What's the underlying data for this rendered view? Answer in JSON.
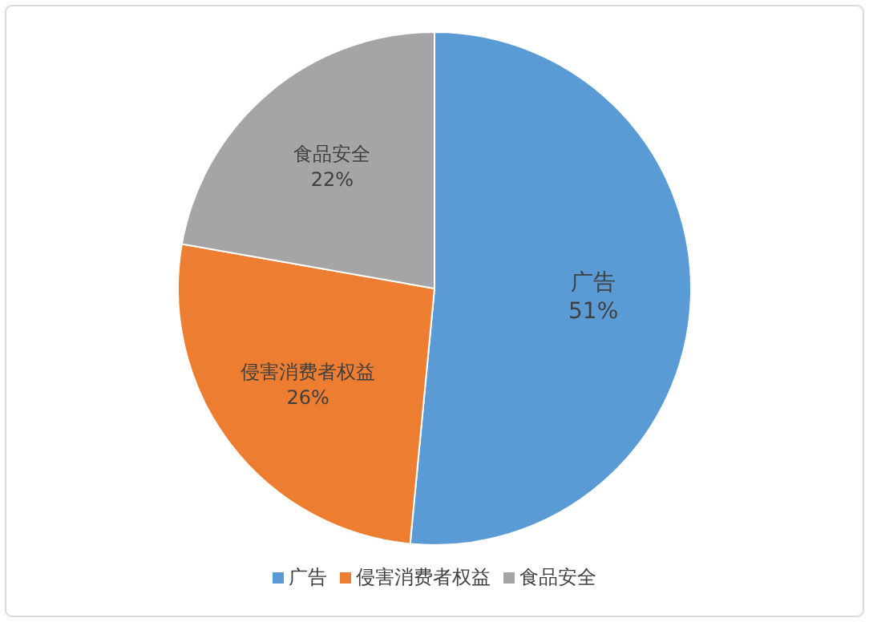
{
  "chart_data": {
    "type": "pie",
    "categories": [
      "广告",
      "侵害消费者权益",
      "食品安全"
    ],
    "values": [
      51,
      26,
      22
    ],
    "colors": [
      "#5b9bd5",
      "#ed7d31",
      "#a5a5a5"
    ],
    "value_labels": [
      "51%",
      "26%",
      "22%"
    ],
    "legend": "bottom"
  }
}
